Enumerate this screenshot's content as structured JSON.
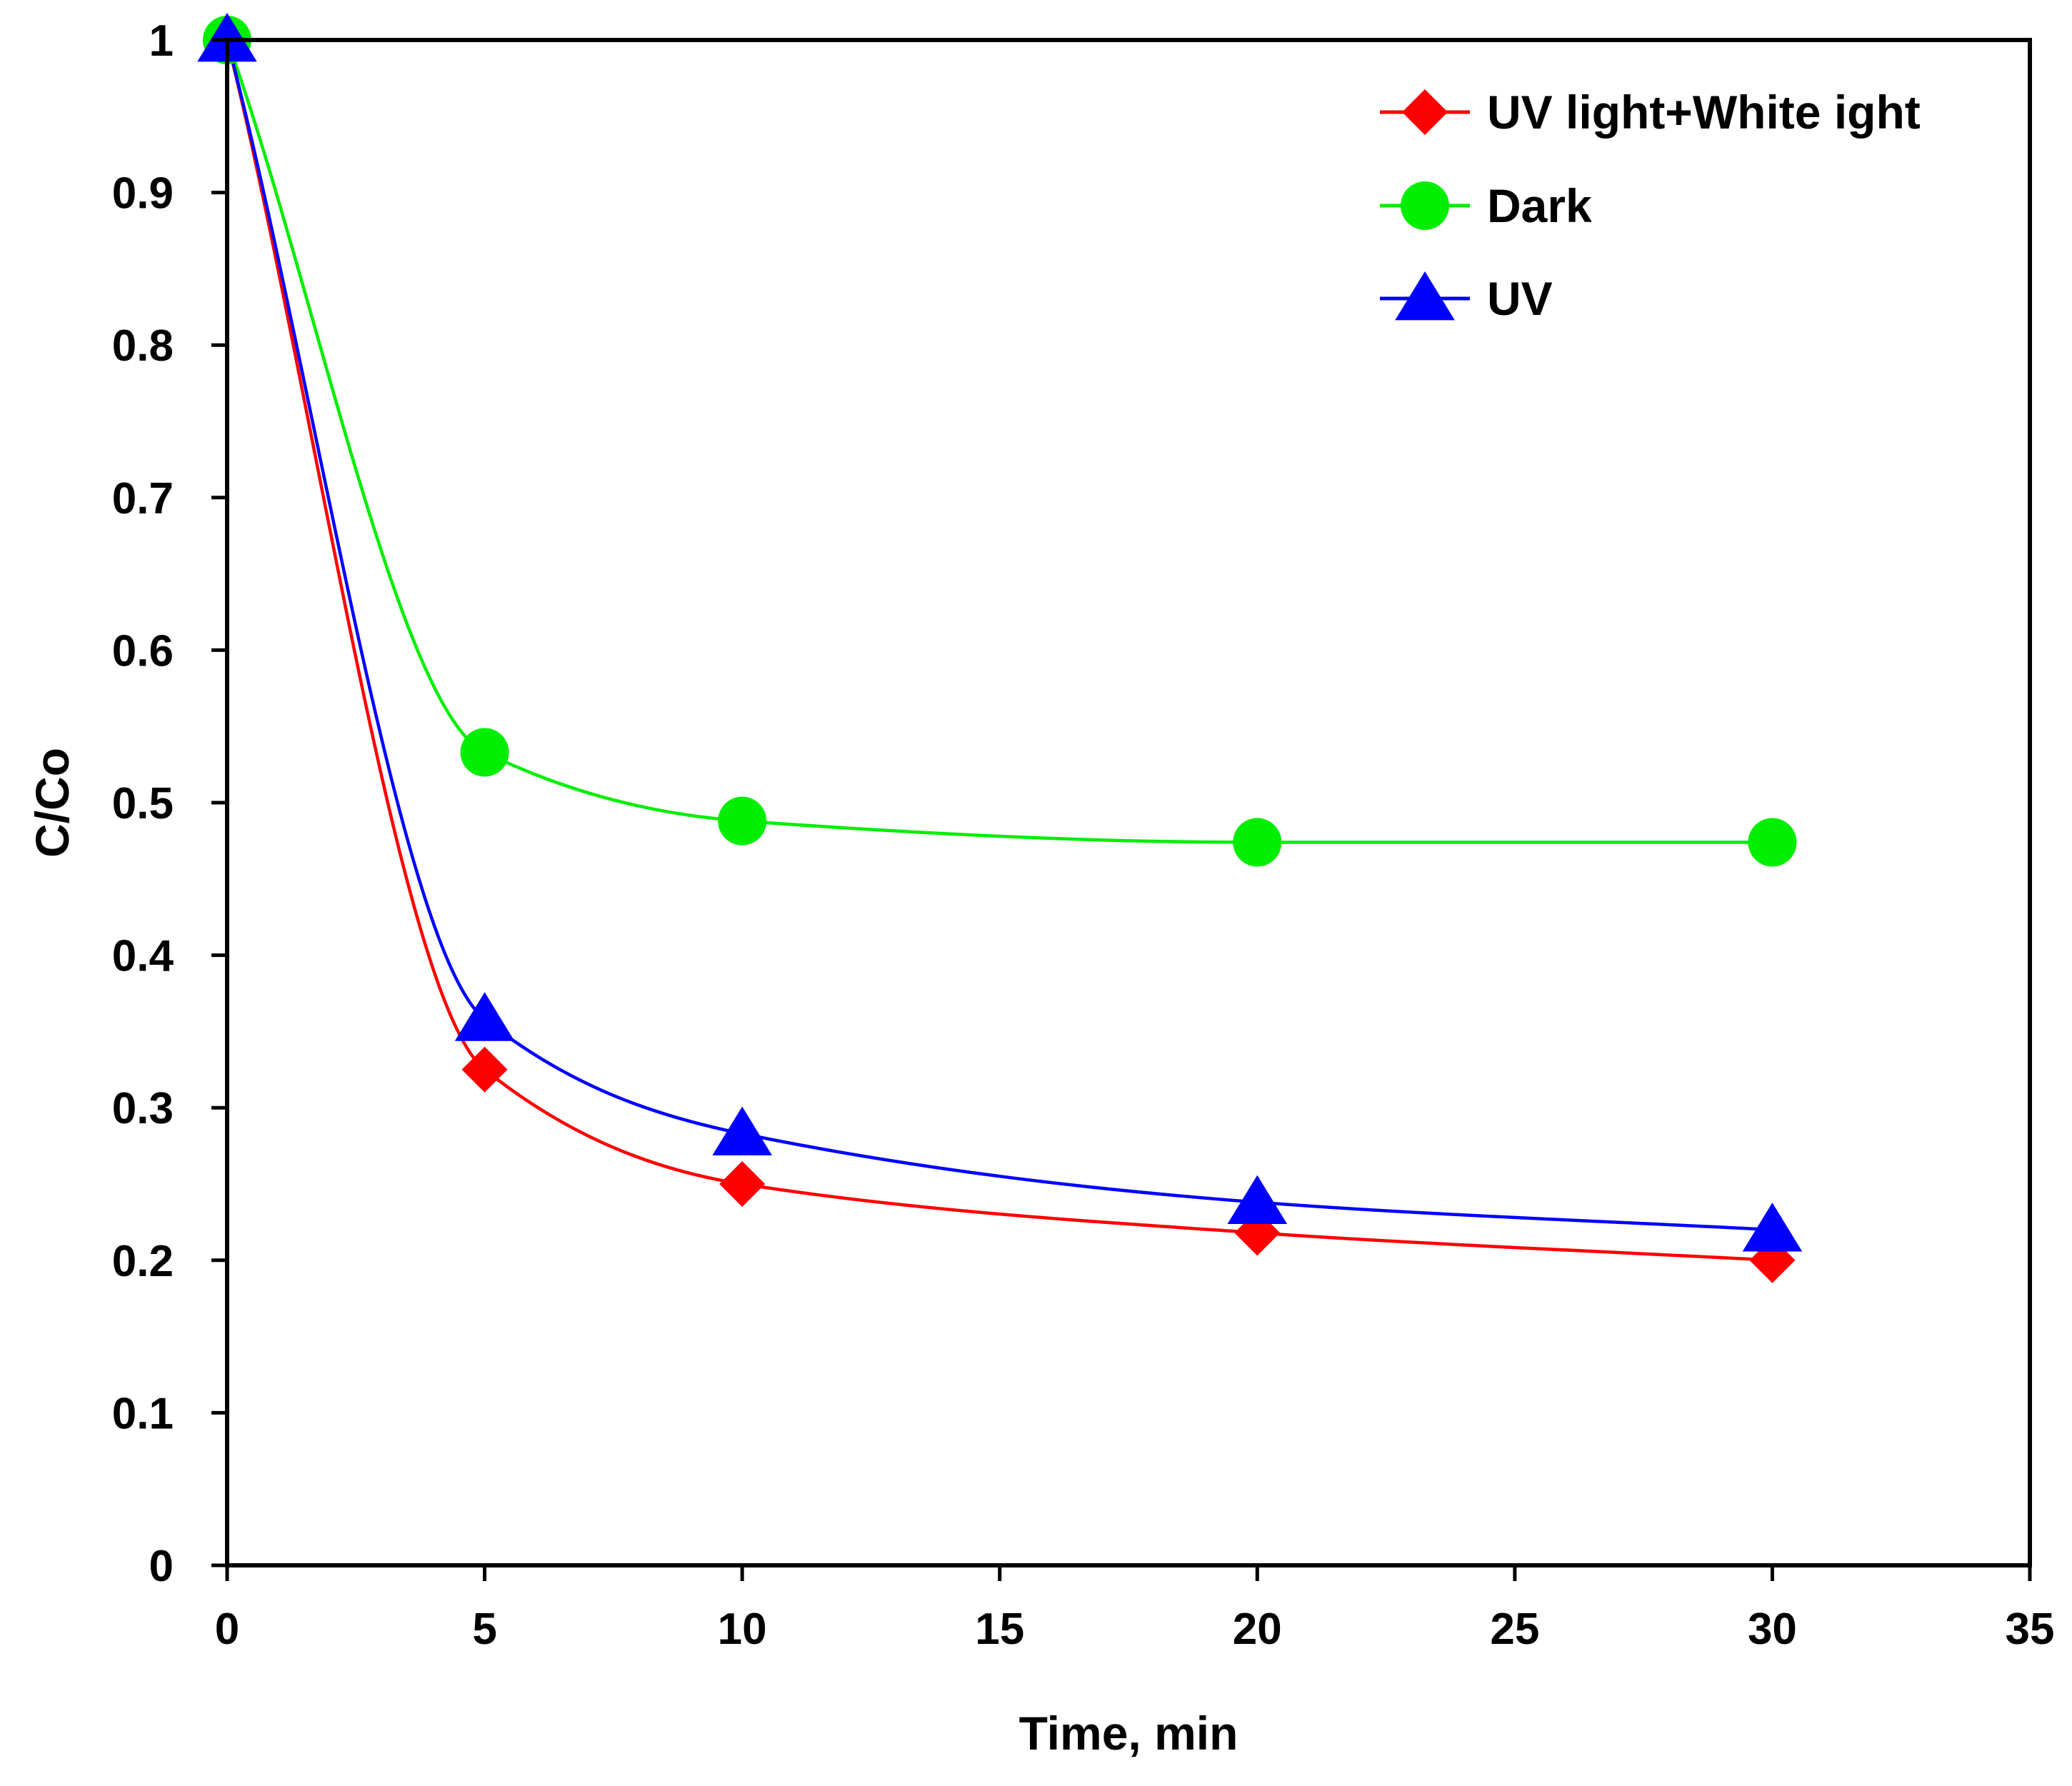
{
  "chart_data": {
    "type": "line",
    "title": "",
    "xlabel": "Time, min",
    "ylabel": "C/Co",
    "xlim": [
      0,
      35
    ],
    "ylim": [
      0,
      1
    ],
    "xticks": [
      "0",
      "5",
      "10",
      "15",
      "20",
      "25",
      "30",
      "35"
    ],
    "yticks": [
      "0",
      "0.1",
      "0.2",
      "0.3",
      "0.4",
      "0.5",
      "0.6",
      "0.7",
      "0.8",
      "0.9",
      "1"
    ],
    "grid": false,
    "legend_position": "top-right",
    "series": [
      {
        "name": "UV light+White ight",
        "color": "#ff0000",
        "marker": "diamond",
        "x": [
          0,
          5,
          10,
          20,
          30
        ],
        "y": [
          1.0,
          0.325,
          0.25,
          0.218,
          0.2
        ]
      },
      {
        "name": "Dark",
        "color": "#00ee00",
        "marker": "circle",
        "x": [
          0,
          5,
          10,
          20,
          30
        ],
        "y": [
          1.0,
          0.533,
          0.488,
          0.474,
          0.474
        ]
      },
      {
        "name": "UV",
        "color": "#0000ff",
        "marker": "triangle",
        "x": [
          0,
          5,
          10,
          20,
          30
        ],
        "y": [
          1.0,
          0.358,
          0.283,
          0.238,
          0.22
        ]
      }
    ]
  }
}
